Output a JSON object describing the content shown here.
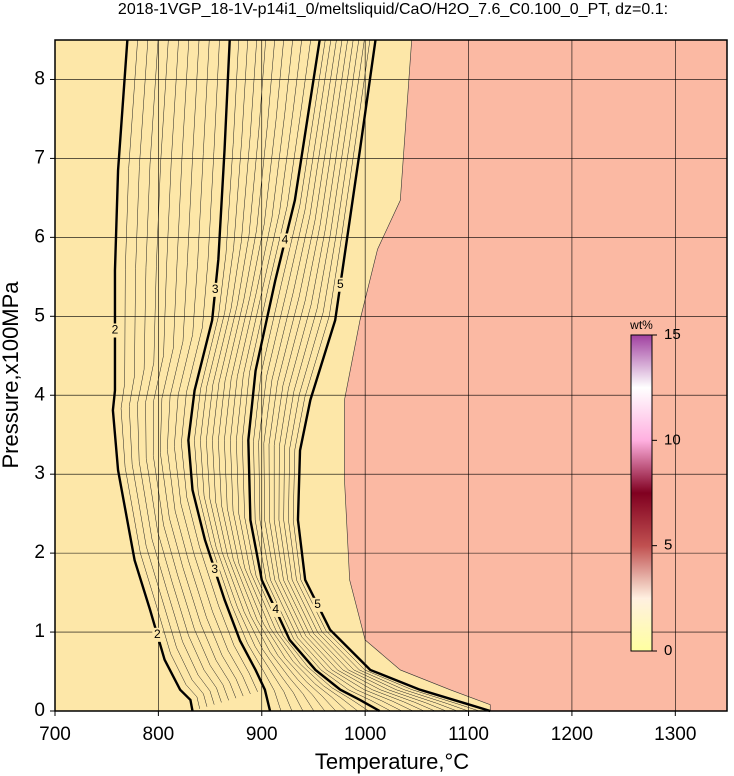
{
  "chart_data": {
    "type": "contour",
    "title": "2018-1VGP_18-1V-p14i1_0/meltsliquid/CaO/H2O_7.6_C0.100_0_PT, dz=0.1:",
    "x_label": "Temperature,°C",
    "y_label": "Pressure,x100MPa",
    "xlim": [
      700,
      1350
    ],
    "ylim": [
      0,
      8.5
    ],
    "xticks": [
      700,
      800,
      900,
      1000,
      1100,
      1200,
      1300
    ],
    "yticks": [
      0,
      1,
      2,
      3,
      4,
      5,
      6,
      7,
      8
    ],
    "grid": true,
    "background_color": "#fbb9a3",
    "region": {
      "color": "#fde7a8",
      "x": [
        1045,
        1034,
        1012,
        995,
        980,
        980,
        985,
        1000,
        1034,
        1082,
        1121,
        1121
      ],
      "y": [
        8.5,
        6.47,
        5.85,
        4.95,
        3.94,
        2.93,
        1.66,
        0.9,
        0.52,
        0.27,
        0.08,
        0
      ]
    },
    "contours": [
      {
        "level": 2,
        "x": [
          770,
          761,
          758,
          758,
          756,
          761,
          777,
          792,
          806,
          821,
          831,
          833
        ],
        "y": [
          8.5,
          6.85,
          5.58,
          4.06,
          3.81,
          3.05,
          1.91,
          1.28,
          0.65,
          0.27,
          0.14,
          0
        ]
      },
      {
        "level": 3,
        "x": [
          869,
          864,
          858,
          852,
          835,
          829,
          833,
          845,
          864,
          879,
          894,
          903,
          908
        ],
        "y": [
          8.5,
          7.11,
          5.72,
          4.95,
          4.06,
          3.43,
          2.8,
          2.17,
          1.41,
          0.89,
          0.52,
          0.27,
          0
        ]
      },
      {
        "level": 4,
        "x": [
          956,
          947,
          932,
          913,
          894,
          887,
          889,
          900,
          927,
          952,
          976,
          995,
          1014
        ],
        "y": [
          8.5,
          7.74,
          6.47,
          5.45,
          4.31,
          3.43,
          2.42,
          1.66,
          0.9,
          0.52,
          0.27,
          0.14,
          0
        ]
      },
      {
        "level": 5,
        "x": [
          1010,
          995,
          981,
          971,
          947,
          937,
          935,
          942,
          966,
          1005,
          1053,
          1101,
          1121
        ],
        "y": [
          8.5,
          7.11,
          5.85,
          4.95,
          3.94,
          3.3,
          2.42,
          1.66,
          1.03,
          0.52,
          0.27,
          0.08,
          0
        ]
      }
    ],
    "colorbar": {
      "label": "wt%",
      "lim": [
        0,
        15
      ],
      "ticks": [
        0,
        5,
        10,
        15
      ],
      "colors": [
        "#ffffa0",
        "#fff0e0",
        "#c05050",
        "#800020",
        "#ffb0e0",
        "#ffffff",
        "#a040a0"
      ]
    }
  }
}
